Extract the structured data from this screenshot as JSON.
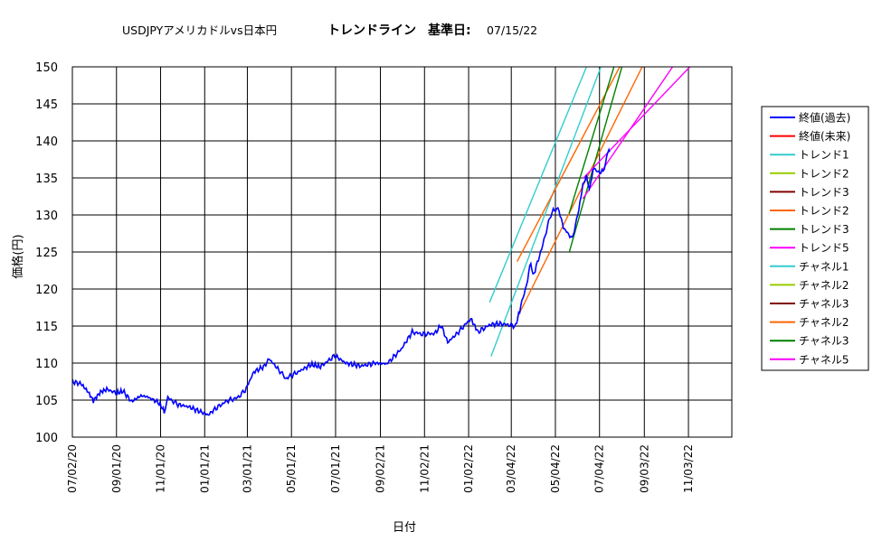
{
  "chart_data": {
    "type": "line",
    "title": {
      "pair": "USDJPYアメリカドルvs日本円",
      "label": "トレンドライン",
      "base_label": "基準日:",
      "base_date": "07/15/22"
    },
    "xlabel": "日付",
    "ylabel": "価格(円)",
    "ylim": [
      100,
      150
    ],
    "yticks": [
      100,
      105,
      110,
      115,
      120,
      125,
      130,
      135,
      140,
      145,
      150
    ],
    "x_range": [
      "2020-07-02",
      "2022-12-31"
    ],
    "xticks": [
      {
        "date": "2020-07-02",
        "label": "07/02/20"
      },
      {
        "date": "2020-09-01",
        "label": "09/01/20"
      },
      {
        "date": "2020-11-01",
        "label": "11/01/20"
      },
      {
        "date": "2021-01-01",
        "label": "01/01/21"
      },
      {
        "date": "2021-03-01",
        "label": "03/01/21"
      },
      {
        "date": "2021-05-01",
        "label": "05/01/21"
      },
      {
        "date": "2021-07-01",
        "label": "07/01/21"
      },
      {
        "date": "2021-09-01",
        "label": "09/02/21"
      },
      {
        "date": "2021-11-01",
        "label": "11/02/21"
      },
      {
        "date": "2022-01-01",
        "label": "01/02/22"
      },
      {
        "date": "2022-03-01",
        "label": "03/04/22"
      },
      {
        "date": "2022-05-01",
        "label": "05/04/22"
      },
      {
        "date": "2022-07-01",
        "label": "07/04/22"
      },
      {
        "date": "2022-09-01",
        "label": "09/03/22"
      },
      {
        "date": "2022-11-01",
        "label": "11/03/22"
      }
    ],
    "grid": true,
    "legend_position": "right",
    "series": [
      {
        "name": "終値(過去)",
        "color": "#0000ff",
        "points": [
          [
            "2020-07-02",
            107.5
          ],
          [
            "2020-07-14",
            107.2
          ],
          [
            "2020-07-24",
            106.1
          ],
          [
            "2020-07-31",
            104.9
          ],
          [
            "2020-08-10",
            106.1
          ],
          [
            "2020-08-20",
            106.5
          ],
          [
            "2020-08-31",
            105.9
          ],
          [
            "2020-09-10",
            106.2
          ],
          [
            "2020-09-22",
            104.8
          ],
          [
            "2020-10-05",
            105.6
          ],
          [
            "2020-10-15",
            105.4
          ],
          [
            "2020-10-30",
            104.6
          ],
          [
            "2020-11-06",
            103.5
          ],
          [
            "2020-11-11",
            105.3
          ],
          [
            "2020-11-25",
            104.4
          ],
          [
            "2020-12-10",
            104.1
          ],
          [
            "2020-12-22",
            103.6
          ],
          [
            "2021-01-06",
            103.0
          ],
          [
            "2021-01-15",
            103.8
          ],
          [
            "2021-02-01",
            104.9
          ],
          [
            "2021-02-15",
            105.3
          ],
          [
            "2021-02-26",
            106.3
          ],
          [
            "2021-03-10",
            108.8
          ],
          [
            "2021-03-25",
            109.6
          ],
          [
            "2021-03-31",
            110.6
          ],
          [
            "2021-04-15",
            108.9
          ],
          [
            "2021-04-23",
            107.9
          ],
          [
            "2021-05-10",
            108.8
          ],
          [
            "2021-05-28",
            109.8
          ],
          [
            "2021-06-10",
            109.5
          ],
          [
            "2021-06-30",
            111.0
          ],
          [
            "2021-07-15",
            110.0
          ],
          [
            "2021-08-05",
            109.6
          ],
          [
            "2021-08-25",
            110.0
          ],
          [
            "2021-09-10",
            109.9
          ],
          [
            "2021-09-30",
            111.9
          ],
          [
            "2021-10-15",
            114.2
          ],
          [
            "2021-10-29",
            113.9
          ],
          [
            "2021-11-15",
            114.0
          ],
          [
            "2021-11-24",
            115.1
          ],
          [
            "2021-12-03",
            112.8
          ],
          [
            "2021-12-15",
            113.9
          ],
          [
            "2022-01-04",
            116.0
          ],
          [
            "2022-01-14",
            114.2
          ],
          [
            "2022-01-31",
            115.2
          ],
          [
            "2022-02-15",
            115.3
          ],
          [
            "2022-03-07",
            115.0
          ],
          [
            "2022-03-14",
            117.6
          ],
          [
            "2022-03-22",
            120.5
          ],
          [
            "2022-03-28",
            123.7
          ],
          [
            "2022-03-31",
            121.7
          ],
          [
            "2022-04-12",
            125.4
          ],
          [
            "2022-04-20",
            128.5
          ],
          [
            "2022-04-28",
            130.8
          ],
          [
            "2022-05-06",
            130.6
          ],
          [
            "2022-05-12",
            128.3
          ],
          [
            "2022-05-24",
            126.8
          ],
          [
            "2022-06-01",
            130.0
          ],
          [
            "2022-06-08",
            134.0
          ],
          [
            "2022-06-13",
            135.2
          ],
          [
            "2022-06-17",
            133.4
          ],
          [
            "2022-06-22",
            136.3
          ],
          [
            "2022-06-30",
            135.7
          ],
          [
            "2022-07-06",
            135.9
          ],
          [
            "2022-07-14",
            138.9
          ],
          [
            "2022-07-15",
            138.5
          ]
        ]
      },
      {
        "name": "終値(未来)",
        "color": "#ff0000",
        "points": []
      },
      {
        "name": "トレンド1",
        "color": "#33cccc",
        "points": [
          [
            "2022-02-01",
            110.9
          ],
          [
            "2022-07-03",
            150.0
          ]
        ]
      },
      {
        "name": "トレンド2",
        "color": "#99cc00",
        "points": []
      },
      {
        "name": "トレンド3",
        "color": "#800000",
        "points": []
      },
      {
        "name": "トレンド2",
        "color": "#ff6600",
        "points": [
          [
            "2022-03-09",
            116.1
          ],
          [
            "2022-08-29",
            150.0
          ]
        ]
      },
      {
        "name": "トレンド3",
        "color": "#008000",
        "points": [
          [
            "2022-05-20",
            124.9
          ],
          [
            "2022-08-01",
            150.0
          ]
        ]
      },
      {
        "name": "トレンド5",
        "color": "#ff00ff",
        "points": [
          [
            "2022-06-08",
            132.2
          ],
          [
            "2022-10-10",
            150.0
          ]
        ]
      },
      {
        "name": "チャネル1",
        "color": "#33cccc",
        "points": [
          [
            "2022-01-30",
            118.2
          ],
          [
            "2022-06-13",
            150.0
          ]
        ]
      },
      {
        "name": "チャネル2",
        "color": "#99cc00",
        "points": []
      },
      {
        "name": "チャネル3",
        "color": "#800000",
        "points": []
      },
      {
        "name": "チャネル2",
        "color": "#ff6600",
        "points": [
          [
            "2022-03-09",
            123.7
          ],
          [
            "2022-07-29",
            150.0
          ]
        ]
      },
      {
        "name": "チャネル3",
        "color": "#008000",
        "points": [
          [
            "2022-05-20",
            130.2
          ],
          [
            "2022-07-21",
            150.0
          ]
        ]
      },
      {
        "name": "チャネル5",
        "color": "#ff00ff",
        "points": [
          [
            "2022-06-08",
            134.9
          ],
          [
            "2022-11-03",
            150.0
          ]
        ]
      }
    ]
  }
}
